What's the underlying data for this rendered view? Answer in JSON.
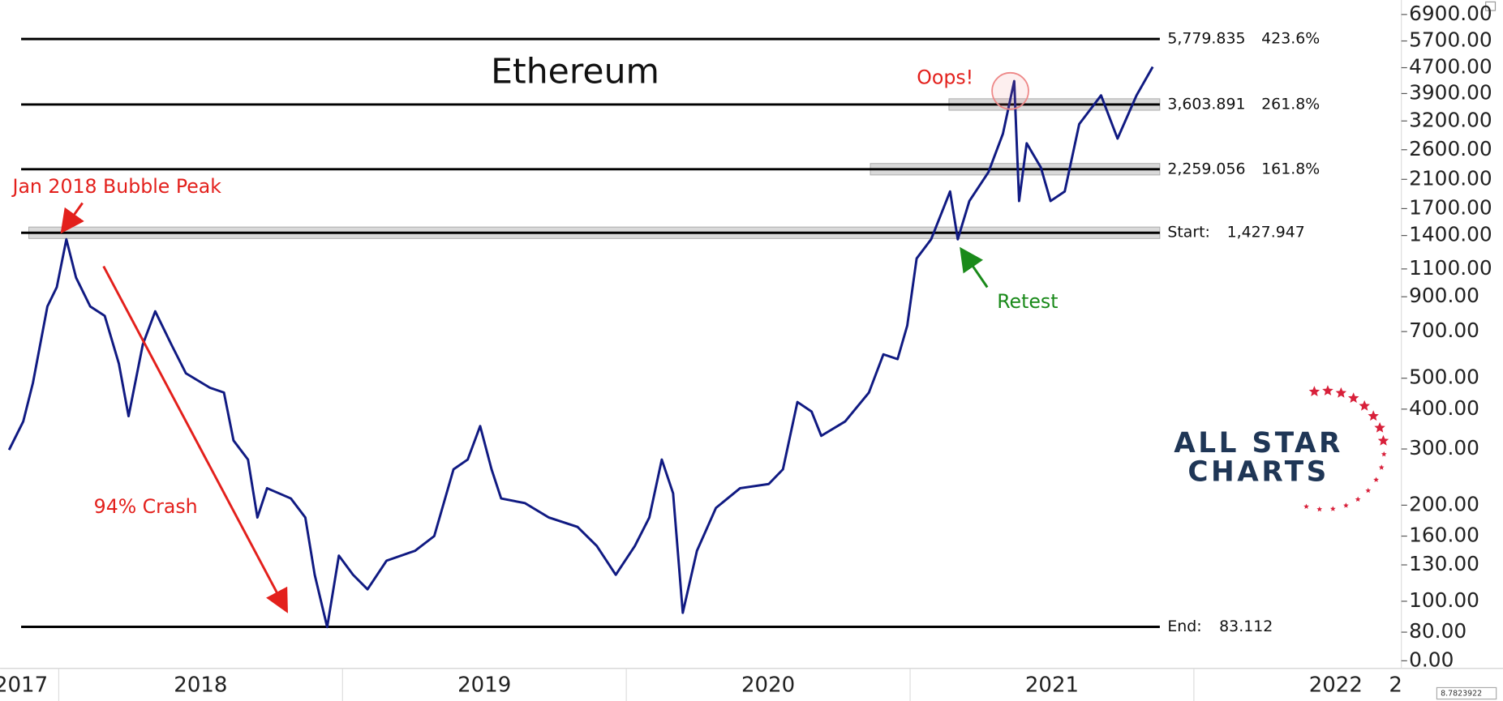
{
  "chart_data": {
    "type": "line",
    "title": "Ethereum",
    "log_scale": true,
    "color": "#101a82",
    "x": [
      2017.825,
      2017.875,
      2017.909,
      2017.96,
      2017.993,
      2018.027,
      2018.061,
      2018.111,
      2018.162,
      2018.212,
      2018.246,
      2018.296,
      2018.34,
      2018.397,
      2018.448,
      2018.532,
      2018.582,
      2018.616,
      2018.667,
      2018.7,
      2018.734,
      2018.818,
      2018.869,
      2018.902,
      2018.946,
      2018.987,
      2019.037,
      2019.088,
      2019.155,
      2019.256,
      2019.323,
      2019.391,
      2019.441,
      2019.485,
      2019.525,
      2019.559,
      2019.643,
      2019.727,
      2019.828,
      2019.896,
      2019.963,
      2020.03,
      2020.081,
      2020.125,
      2020.165,
      2020.199,
      2020.249,
      2020.316,
      2020.401,
      2020.502,
      2020.552,
      2020.603,
      2020.653,
      2020.687,
      2020.771,
      2020.855,
      2020.906,
      2020.956,
      2020.99,
      2021.023,
      2021.074,
      2021.141,
      2021.168,
      2021.209,
      2021.276,
      2021.327,
      2021.367,
      2021.384,
      2021.411,
      2021.461,
      2021.495,
      2021.545,
      2021.596,
      2021.673,
      2021.731,
      2021.798,
      2021.855
    ],
    "values": [
      298,
      366,
      483,
      839,
      964,
      1362,
      1033,
      839,
      784,
      555,
      380,
      637,
      810,
      637,
      518,
      467,
      451,
      319,
      278,
      183,
      226,
      210,
      183,
      121,
      83,
      139,
      121,
      109,
      134,
      144,
      160,
      259,
      278,
      354,
      259,
      210,
      203,
      183,
      171,
      149,
      121,
      149,
      183,
      278,
      218,
      92,
      144,
      196,
      226,
      233,
      259,
      421,
      393,
      330,
      366,
      451,
      594,
      574,
      731,
      1186,
      1362,
      1924,
      1362,
      1796,
      2211,
      2917,
      4266,
      1796,
      2724,
      2288,
      1796,
      1924,
      3128,
      3849,
      2818,
      3849,
      4730
    ],
    "xlim": [
      2017.81,
      2022.5
    ],
    "xticks": [
      {
        "value": 2017,
        "label": "2017"
      },
      2018,
      2019,
      2020,
      2021,
      2022,
      {
        "value": 2023,
        "label": "2"
      }
    ],
    "ylim": [
      62,
      7660
    ],
    "yticks": [
      {
        "value": 6900,
        "label": "6900.00"
      },
      {
        "value": 5700,
        "label": "5700.00"
      },
      {
        "value": 4700,
        "label": "4700.00"
      },
      {
        "value": 3900,
        "label": "3900.00"
      },
      {
        "value": 3200,
        "label": "3200.00"
      },
      {
        "value": 2600,
        "label": "2600.00"
      },
      {
        "value": 2100,
        "label": "2100.00"
      },
      {
        "value": 1700,
        "label": "1700.00"
      },
      {
        "value": 1400,
        "label": "1400.00"
      },
      {
        "value": 1100,
        "label": "1100.00"
      },
      {
        "value": 900,
        "label": "900.00"
      },
      {
        "value": 700,
        "label": "700.00"
      },
      {
        "value": 500,
        "label": "500.00"
      },
      {
        "value": 400,
        "label": "400.00"
      },
      {
        "value": 300,
        "label": "300.00"
      },
      {
        "value": 200,
        "label": "200.00"
      },
      {
        "value": 160,
        "label": "160.00"
      },
      {
        "value": 130,
        "label": "130.00"
      },
      {
        "value": 100,
        "label": "100.00"
      },
      {
        "value": 80,
        "label": "80.00"
      },
      {
        "value": 0,
        "label": "0.00"
      }
    ],
    "levels": [
      {
        "value": 5779.835,
        "value_label": "5,779.835",
        "percent": "423.6%"
      },
      {
        "value": 3603.891,
        "value_label": "3,603.891",
        "percent": "261.8%"
      },
      {
        "value": 2259.056,
        "value_label": "2,259.056",
        "percent": "161.8%"
      },
      {
        "name": "Start:",
        "value": 1427.947,
        "value_label": "1,427.947"
      },
      {
        "name": "End:",
        "value": 83.112,
        "value_label": "83.112"
      }
    ],
    "annotations": [
      "Oops!",
      "Jan 2018 Bubble Peak",
      "94% Crash",
      "Retest"
    ],
    "logo": [
      "ALL STAR",
      "CHARTS"
    ],
    "corner_label": "8.7823922"
  }
}
